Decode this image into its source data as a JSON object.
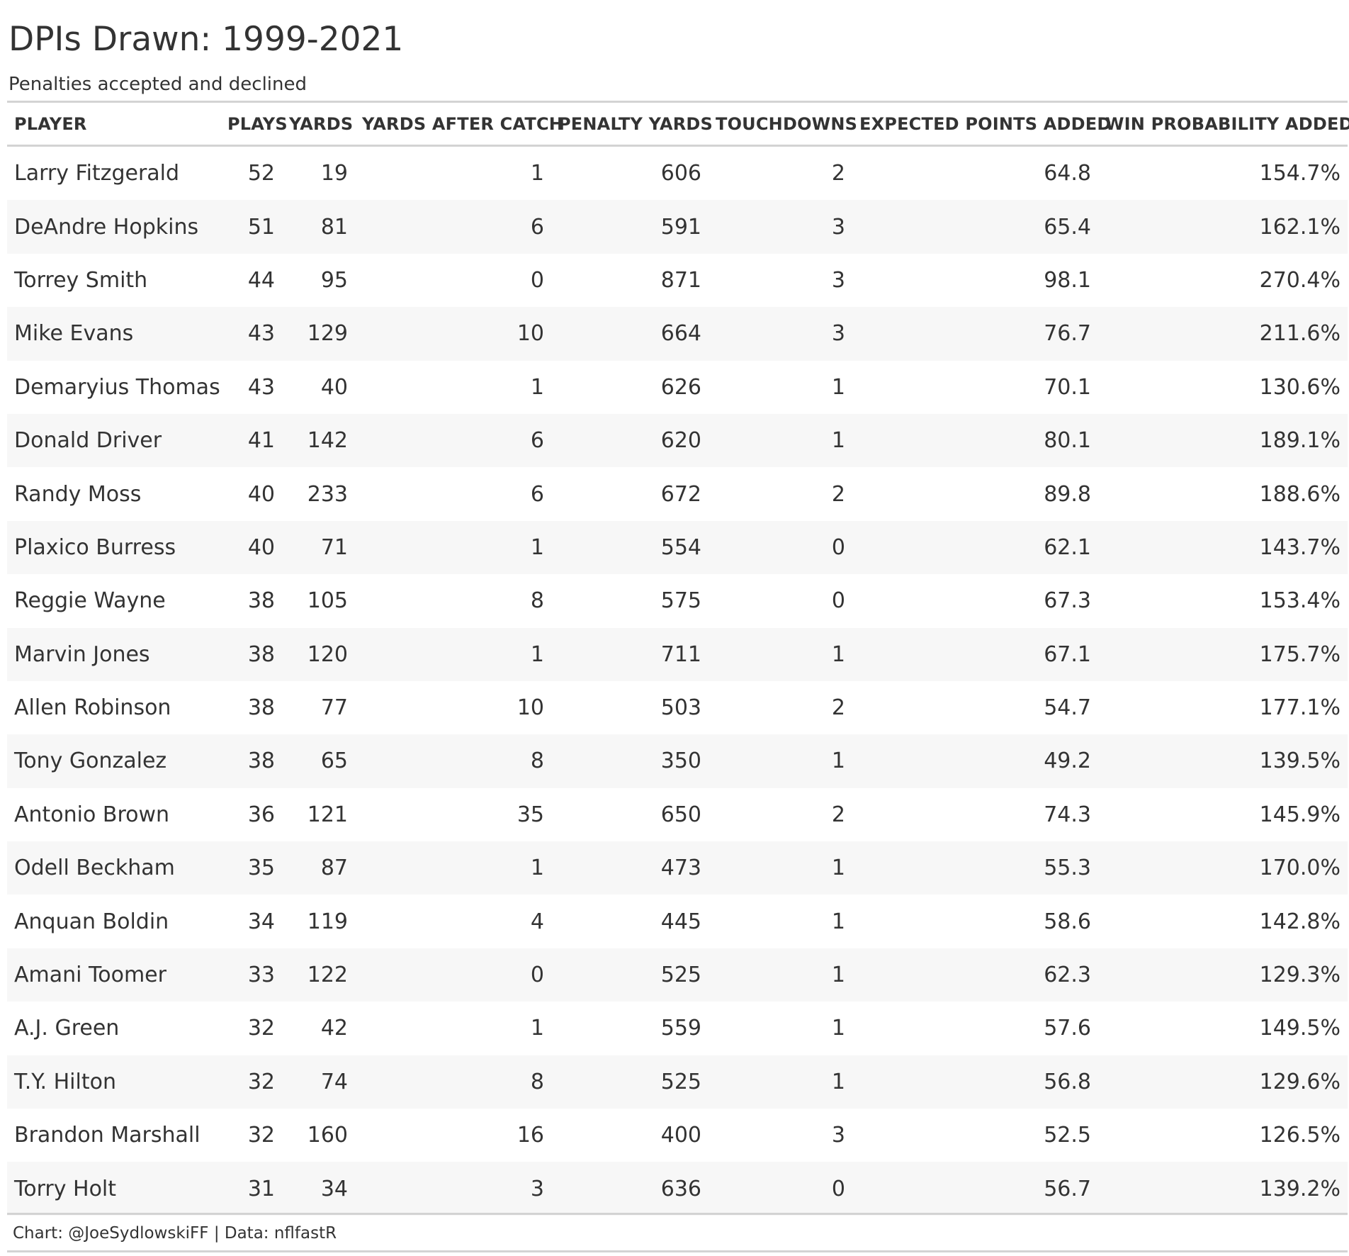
{
  "chart_data": {
    "type": "table",
    "title": "DPIs Drawn: 1999-2021",
    "subtitle": "Penalties accepted and declined",
    "source": "Chart: @JoeSydlowskiFF | Data: nflfastR",
    "columns": [
      "PLAYER",
      "PLAYS",
      "YARDS",
      "YARDS AFTER CATCH",
      "PENALTY YARDS",
      "TOUCHDOWNS",
      "EXPECTED POINTS ADDED",
      "WIN PROBABILITY ADDED"
    ],
    "rows": [
      [
        "Larry Fitzgerald",
        "52",
        "19",
        "1",
        "606",
        "2",
        "64.8",
        "154.7%"
      ],
      [
        "DeAndre Hopkins",
        "51",
        "81",
        "6",
        "591",
        "3",
        "65.4",
        "162.1%"
      ],
      [
        "Torrey Smith",
        "44",
        "95",
        "0",
        "871",
        "3",
        "98.1",
        "270.4%"
      ],
      [
        "Mike Evans",
        "43",
        "129",
        "10",
        "664",
        "3",
        "76.7",
        "211.6%"
      ],
      [
        "Demaryius Thomas",
        "43",
        "40",
        "1",
        "626",
        "1",
        "70.1",
        "130.6%"
      ],
      [
        "Donald Driver",
        "41",
        "142",
        "6",
        "620",
        "1",
        "80.1",
        "189.1%"
      ],
      [
        "Randy Moss",
        "40",
        "233",
        "6",
        "672",
        "2",
        "89.8",
        "188.6%"
      ],
      [
        "Plaxico Burress",
        "40",
        "71",
        "1",
        "554",
        "0",
        "62.1",
        "143.7%"
      ],
      [
        "Reggie Wayne",
        "38",
        "105",
        "8",
        "575",
        "0",
        "67.3",
        "153.4%"
      ],
      [
        "Marvin Jones",
        "38",
        "120",
        "1",
        "711",
        "1",
        "67.1",
        "175.7%"
      ],
      [
        "Allen Robinson",
        "38",
        "77",
        "10",
        "503",
        "2",
        "54.7",
        "177.1%"
      ],
      [
        "Tony Gonzalez",
        "38",
        "65",
        "8",
        "350",
        "1",
        "49.2",
        "139.5%"
      ],
      [
        "Antonio Brown",
        "36",
        "121",
        "35",
        "650",
        "2",
        "74.3",
        "145.9%"
      ],
      [
        "Odell Beckham",
        "35",
        "87",
        "1",
        "473",
        "1",
        "55.3",
        "170.0%"
      ],
      [
        "Anquan Boldin",
        "34",
        "119",
        "4",
        "445",
        "1",
        "58.6",
        "142.8%"
      ],
      [
        "Amani Toomer",
        "33",
        "122",
        "0",
        "525",
        "1",
        "62.3",
        "129.3%"
      ],
      [
        "A.J. Green",
        "32",
        "42",
        "1",
        "559",
        "1",
        "57.6",
        "149.5%"
      ],
      [
        "T.Y. Hilton",
        "32",
        "74",
        "8",
        "525",
        "1",
        "56.8",
        "129.6%"
      ],
      [
        "Brandon Marshall",
        "32",
        "160",
        "16",
        "400",
        "3",
        "52.5",
        "126.5%"
      ],
      [
        "Torry Holt",
        "31",
        "34",
        "3",
        "636",
        "0",
        "56.7",
        "139.2%"
      ]
    ],
    "colors": {
      "text": "#333333",
      "stripe": "#f7f7f7",
      "rule": "#d3d3d3"
    }
  }
}
